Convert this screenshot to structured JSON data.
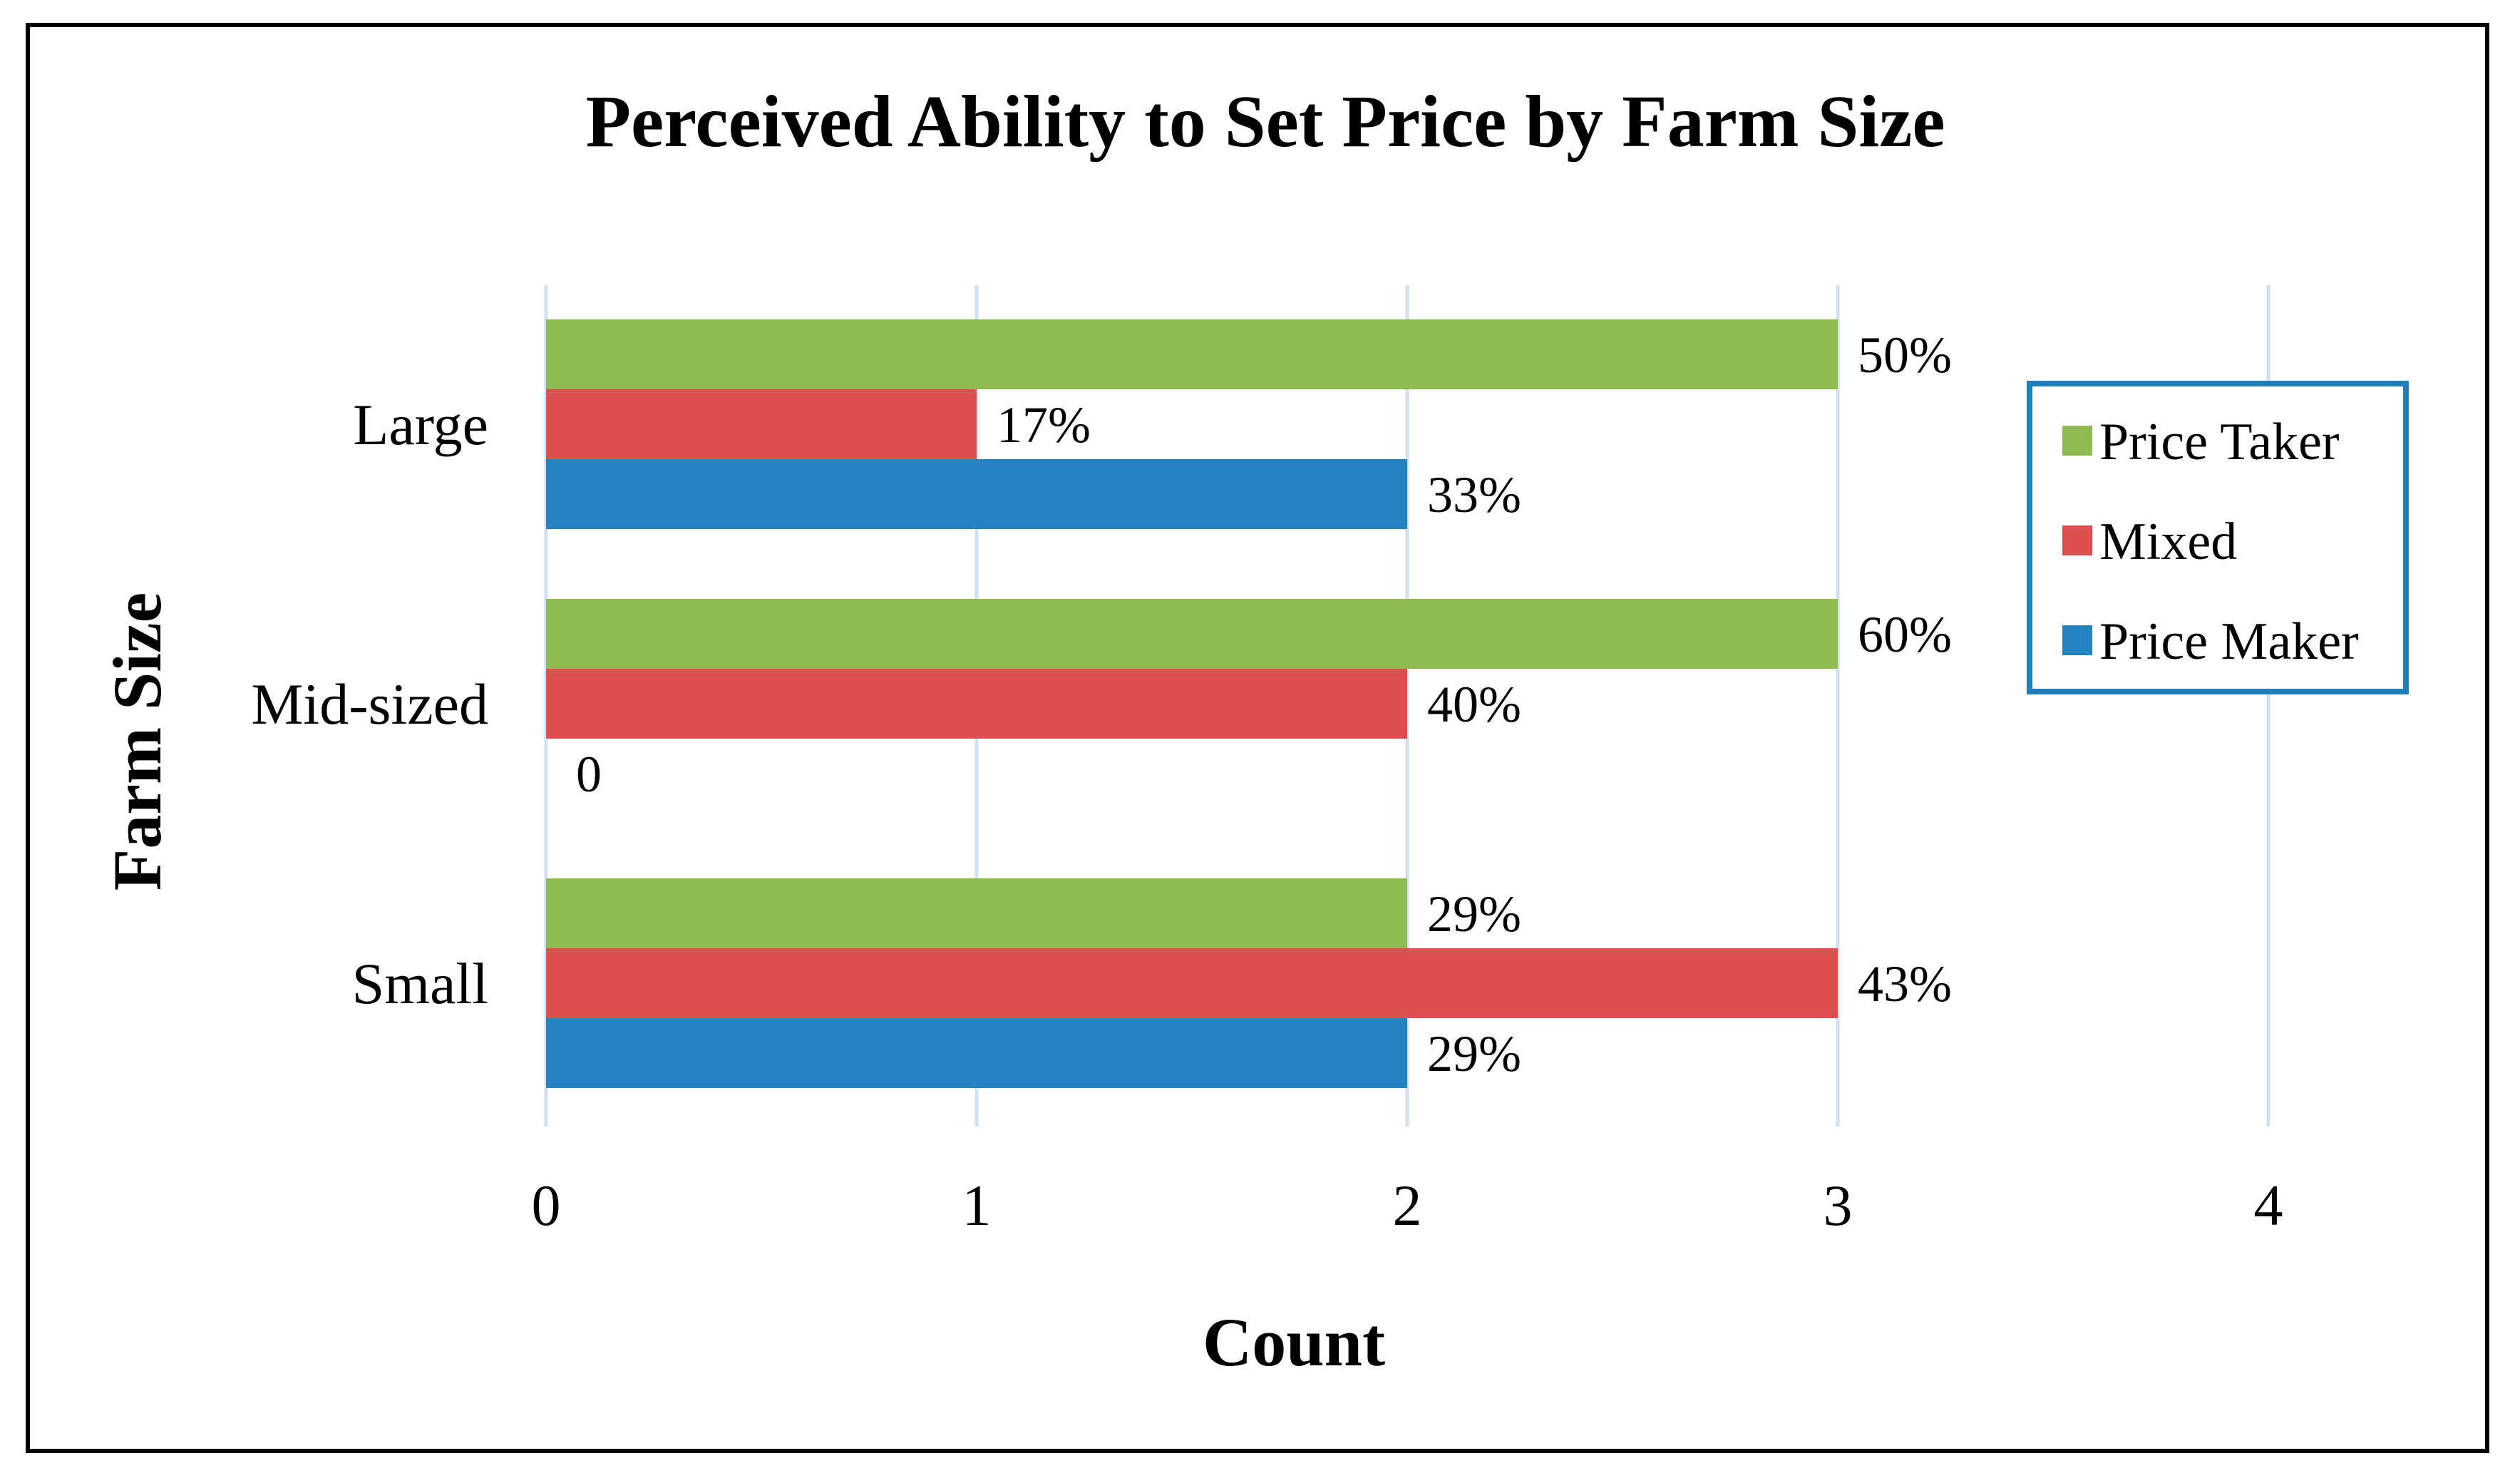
{
  "chart_data": {
    "type": "bar",
    "orientation": "horizontal",
    "title": "Perceived Ability to Set Price by Farm Size",
    "xlabel": "Count",
    "ylabel": "Farm Size",
    "xlim": [
      0,
      4
    ],
    "x_ticks": [
      "0",
      "1",
      "2",
      "3",
      "4"
    ],
    "grid": "vertical",
    "categories": [
      "Large",
      "Mid-sized",
      "Small"
    ],
    "series": [
      {
        "name": "Price Taker",
        "color": "#8fbc52",
        "values": [
          3,
          3,
          2
        ],
        "labels": [
          "50%",
          "60%",
          "29%"
        ]
      },
      {
        "name": "Mixed",
        "color": "#e04f4f",
        "values": [
          1,
          2,
          3
        ],
        "labels": [
          "17%",
          "40%",
          "43%"
        ]
      },
      {
        "name": "Price Maker",
        "color": "#2683c1",
        "values": [
          2,
          0,
          2
        ],
        "labels": [
          "33%",
          "0",
          "29%"
        ]
      }
    ],
    "legend": {
      "position": "right",
      "border_color": "#1f7fba"
    }
  }
}
